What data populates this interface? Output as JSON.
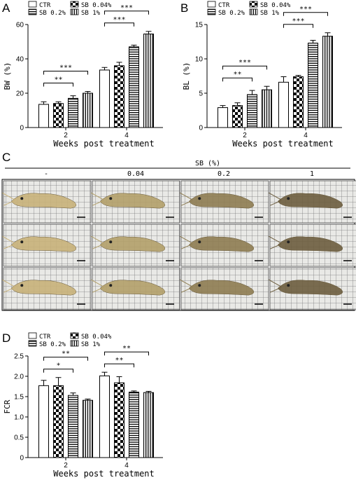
{
  "panel_labels": {
    "A": "A",
    "B": "B",
    "C": "C",
    "D": "D"
  },
  "legend_items": [
    "CTR",
    "SB 0.04%",
    "SB 0.2%",
    "SB 1%"
  ],
  "fill_patterns": [
    "empty",
    "checker",
    "horizontal",
    "vertical"
  ],
  "photo_panel": {
    "header": "SB (%)",
    "columns": [
      "-",
      "0.04",
      "0.2",
      "1"
    ],
    "rows": 3,
    "grid_color": "#6b6b6b",
    "shrimp_colors": [
      "#c8b27a",
      "#b3a06a",
      "#8f7d52",
      "#6d5e3f"
    ]
  },
  "chart_data": [
    {
      "id": "A",
      "type": "bar",
      "ylabel": "BW (%)",
      "xlabel": "Weeks post treatment",
      "categories": [
        "2",
        "4"
      ],
      "ylim": [
        0,
        60
      ],
      "yticks": [
        0,
        20,
        40,
        60
      ],
      "series": [
        {
          "name": "CTR",
          "values": [
            13.5,
            33.5
          ],
          "errors": [
            1.5,
            1.5
          ]
        },
        {
          "name": "SB 0.04%",
          "values": [
            14.0,
            36.0
          ],
          "errors": [
            1.0,
            2.0
          ]
        },
        {
          "name": "SB 0.2%",
          "values": [
            17.0,
            47.0
          ],
          "errors": [
            1.5,
            1.0
          ]
        },
        {
          "name": "SB 1%",
          "values": [
            20.0,
            54.5
          ],
          "errors": [
            1.0,
            1.5
          ]
        }
      ],
      "significance": [
        {
          "group": 0,
          "to_series": 2,
          "label": "**"
        },
        {
          "group": 0,
          "to_series": 3,
          "label": "***"
        },
        {
          "group": 1,
          "to_series": 2,
          "label": "***"
        },
        {
          "group": 1,
          "to_series": 3,
          "label": "***"
        }
      ]
    },
    {
      "id": "B",
      "type": "bar",
      "ylabel": "BL (%)",
      "xlabel": "Weeks post treatment",
      "categories": [
        "2",
        "4"
      ],
      "ylim": [
        0,
        15
      ],
      "yticks": [
        0,
        5,
        10,
        15
      ],
      "series": [
        {
          "name": "CTR",
          "values": [
            2.9,
            6.6
          ],
          "errors": [
            0.3,
            0.8
          ]
        },
        {
          "name": "SB 0.04%",
          "values": [
            3.2,
            7.4
          ],
          "errors": [
            0.4,
            0.2
          ]
        },
        {
          "name": "SB 0.2%",
          "values": [
            4.8,
            12.3
          ],
          "errors": [
            0.6,
            0.4
          ]
        },
        {
          "name": "SB 1%",
          "values": [
            5.5,
            13.3
          ],
          "errors": [
            0.5,
            0.5
          ]
        }
      ],
      "significance": [
        {
          "group": 0,
          "to_series": 2,
          "label": "**"
        },
        {
          "group": 0,
          "to_series": 3,
          "label": "***"
        },
        {
          "group": 1,
          "to_series": 2,
          "label": "***"
        },
        {
          "group": 1,
          "to_series": 3,
          "label": "***"
        }
      ]
    },
    {
      "id": "D",
      "type": "bar",
      "ylabel": "FCR",
      "xlabel": "Weeks post treatment",
      "categories": [
        "2",
        "4"
      ],
      "ylim": [
        0,
        2.5
      ],
      "yticks": [
        0,
        0.5,
        1.0,
        1.5,
        2.0,
        2.5
      ],
      "ytick_labels": [
        "0",
        "0.5",
        "1.0",
        "1.5",
        "2.0",
        "2.5"
      ],
      "series": [
        {
          "name": "CTR",
          "values": [
            1.77,
            2.01
          ],
          "errors": [
            0.13,
            0.09
          ]
        },
        {
          "name": "SB 0.04%",
          "values": [
            1.77,
            1.84
          ],
          "errors": [
            0.2,
            0.15
          ]
        },
        {
          "name": "SB 0.2%",
          "values": [
            1.53,
            1.61
          ],
          "errors": [
            0.06,
            0.03
          ]
        },
        {
          "name": "SB 1%",
          "values": [
            1.41,
            1.6
          ],
          "errors": [
            0.03,
            0.03
          ]
        }
      ],
      "significance": [
        {
          "group": 0,
          "to_series": 2,
          "label": "*"
        },
        {
          "group": 0,
          "to_series": 3,
          "label": "**"
        },
        {
          "group": 1,
          "to_series": 2,
          "label": "**"
        },
        {
          "group": 1,
          "to_series": 3,
          "label": "**"
        }
      ]
    }
  ]
}
